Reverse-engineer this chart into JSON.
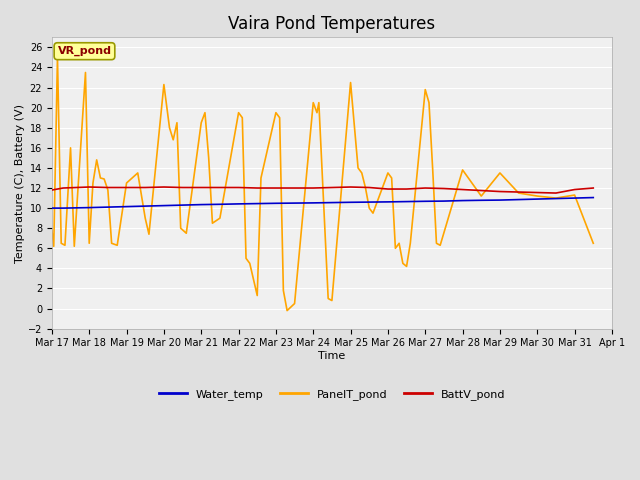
{
  "title": "Vaira Pond Temperatures",
  "xlabel": "Time",
  "ylabel": "Temperature (C), Battery (V)",
  "ylim": [
    -2,
    27
  ],
  "yticks": [
    -2,
    0,
    2,
    4,
    6,
    8,
    10,
    12,
    14,
    16,
    18,
    20,
    22,
    24,
    26
  ],
  "annotation_text": "VR_pond",
  "annotation_color": "#8B0000",
  "annotation_bg": "#FFFF99",
  "annotation_border": "#999900",
  "bg_color": "#E0E0E0",
  "plot_bg": "#F0F0F0",
  "grid_color": "#FFFFFF",
  "water_temp_color": "#0000CC",
  "panel_temp_color": "#FFA500",
  "batt_color": "#CC0000",
  "legend_labels": [
    "Water_temp",
    "PanelT_pond",
    "BattV_pond"
  ],
  "water_temp_data": [
    [
      0.0,
      10.0
    ],
    [
      0.3,
      10.0
    ],
    [
      1.0,
      10.05
    ],
    [
      1.5,
      10.1
    ],
    [
      2.0,
      10.15
    ],
    [
      2.5,
      10.2
    ],
    [
      3.0,
      10.25
    ],
    [
      3.5,
      10.3
    ],
    [
      4.0,
      10.35
    ],
    [
      4.5,
      10.38
    ],
    [
      5.0,
      10.42
    ],
    [
      5.5,
      10.45
    ],
    [
      6.0,
      10.48
    ],
    [
      6.5,
      10.5
    ],
    [
      7.0,
      10.52
    ],
    [
      7.5,
      10.55
    ],
    [
      8.0,
      10.58
    ],
    [
      8.5,
      10.6
    ],
    [
      9.0,
      10.62
    ],
    [
      9.5,
      10.65
    ],
    [
      10.0,
      10.68
    ],
    [
      10.5,
      10.7
    ],
    [
      11.0,
      10.75
    ],
    [
      11.5,
      10.78
    ],
    [
      12.0,
      10.8
    ],
    [
      12.5,
      10.85
    ],
    [
      13.0,
      10.9
    ],
    [
      13.5,
      10.95
    ],
    [
      14.0,
      11.0
    ],
    [
      14.5,
      11.05
    ]
  ],
  "panel_temp_data": [
    [
      0.0,
      7.8
    ],
    [
      0.05,
      6.2
    ],
    [
      0.15,
      25.0
    ],
    [
      0.25,
      6.5
    ],
    [
      0.35,
      6.3
    ],
    [
      0.5,
      16.0
    ],
    [
      0.6,
      6.2
    ],
    [
      0.9,
      23.5
    ],
    [
      1.0,
      6.5
    ],
    [
      1.1,
      12.5
    ],
    [
      1.2,
      14.8
    ],
    [
      1.3,
      13.0
    ],
    [
      1.4,
      12.9
    ],
    [
      1.5,
      11.8
    ],
    [
      1.6,
      6.5
    ],
    [
      1.75,
      6.3
    ],
    [
      2.0,
      12.5
    ],
    [
      2.3,
      13.5
    ],
    [
      2.5,
      9.0
    ],
    [
      2.6,
      7.4
    ],
    [
      3.0,
      22.3
    ],
    [
      3.15,
      18.0
    ],
    [
      3.25,
      16.8
    ],
    [
      3.35,
      18.5
    ],
    [
      3.45,
      8.0
    ],
    [
      3.6,
      7.5
    ],
    [
      4.0,
      18.5
    ],
    [
      4.1,
      19.5
    ],
    [
      4.2,
      15.0
    ],
    [
      4.3,
      8.5
    ],
    [
      4.5,
      9.0
    ],
    [
      5.0,
      19.5
    ],
    [
      5.1,
      19.0
    ],
    [
      5.2,
      5.0
    ],
    [
      5.3,
      4.5
    ],
    [
      5.5,
      1.3
    ],
    [
      5.6,
      13.0
    ],
    [
      6.0,
      19.5
    ],
    [
      6.1,
      19.0
    ],
    [
      6.2,
      1.8
    ],
    [
      6.3,
      -0.2
    ],
    [
      6.5,
      0.5
    ],
    [
      7.0,
      20.5
    ],
    [
      7.1,
      19.5
    ],
    [
      7.15,
      20.5
    ],
    [
      7.4,
      1.0
    ],
    [
      7.5,
      0.8
    ],
    [
      8.0,
      22.5
    ],
    [
      8.2,
      14.0
    ],
    [
      8.3,
      13.5
    ],
    [
      8.4,
      12.0
    ],
    [
      8.5,
      10.0
    ],
    [
      8.6,
      9.5
    ],
    [
      9.0,
      13.5
    ],
    [
      9.1,
      13.0
    ],
    [
      9.2,
      6.0
    ],
    [
      9.3,
      6.5
    ],
    [
      9.4,
      4.5
    ],
    [
      9.5,
      4.2
    ],
    [
      9.6,
      6.5
    ],
    [
      10.0,
      21.8
    ],
    [
      10.1,
      20.5
    ],
    [
      10.2,
      13.8
    ],
    [
      10.3,
      6.5
    ],
    [
      10.4,
      6.3
    ],
    [
      11.0,
      13.8
    ],
    [
      11.5,
      11.2
    ],
    [
      12.0,
      13.5
    ],
    [
      12.5,
      11.5
    ],
    [
      13.0,
      11.2
    ],
    [
      13.5,
      11.0
    ],
    [
      14.0,
      11.3
    ],
    [
      14.5,
      6.5
    ]
  ],
  "batt_data": [
    [
      0.0,
      11.8
    ],
    [
      0.3,
      12.0
    ],
    [
      1.0,
      12.1
    ],
    [
      1.5,
      12.05
    ],
    [
      2.0,
      12.05
    ],
    [
      2.5,
      12.05
    ],
    [
      3.0,
      12.1
    ],
    [
      3.5,
      12.05
    ],
    [
      4.0,
      12.05
    ],
    [
      4.5,
      12.05
    ],
    [
      5.0,
      12.05
    ],
    [
      5.5,
      12.0
    ],
    [
      6.0,
      12.0
    ],
    [
      6.5,
      12.0
    ],
    [
      7.0,
      12.0
    ],
    [
      7.5,
      12.05
    ],
    [
      8.0,
      12.1
    ],
    [
      8.5,
      12.05
    ],
    [
      9.0,
      11.9
    ],
    [
      9.5,
      11.9
    ],
    [
      10.0,
      12.0
    ],
    [
      10.5,
      11.95
    ],
    [
      11.0,
      11.85
    ],
    [
      11.5,
      11.75
    ],
    [
      12.0,
      11.65
    ],
    [
      12.5,
      11.6
    ],
    [
      13.0,
      11.55
    ],
    [
      13.5,
      11.5
    ],
    [
      14.0,
      11.85
    ],
    [
      14.5,
      12.0
    ]
  ],
  "xtick_labels": [
    "Mar 17",
    "Mar 18",
    "Mar 19",
    "Mar 20",
    "Mar 21",
    "Mar 22",
    "Mar 23",
    "Mar 24",
    "Mar 25",
    "Mar 26",
    "Mar 27",
    "Mar 28",
    "Mar 29",
    "Mar 30",
    "Mar 31",
    "Apr 1"
  ],
  "line_width": 1.2,
  "title_fontsize": 12,
  "axis_label_fontsize": 8,
  "tick_fontsize": 7,
  "legend_fontsize": 8,
  "annot_fontsize": 8
}
